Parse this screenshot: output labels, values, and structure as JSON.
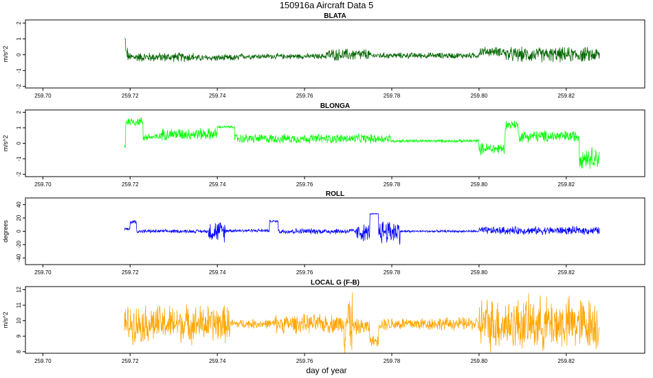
{
  "title": "150916a   Aircraft Data 5",
  "xlabel": "day of year",
  "chart_data": [
    {
      "type": "line",
      "title": "BLATA",
      "ylabel": "m/s^2",
      "color": "#006400",
      "xlim": [
        259.696,
        259.838
      ],
      "ylim": [
        -2.1,
        2.2
      ],
      "xticks": [
        259.7,
        259.72,
        259.74,
        259.76,
        259.78,
        259.8,
        259.82
      ],
      "xtick_labels": [
        "259.70",
        "259.72",
        "259.74",
        "259.76",
        "259.78",
        "259.80",
        "259.82"
      ],
      "yticks": [
        -2,
        -1,
        0,
        1,
        2
      ],
      "ytick_labels": [
        "-2",
        "-1",
        "0",
        "1",
        "2"
      ],
      "x_start": 259.7187,
      "x_end": 259.8277,
      "segments": [
        {
          "x0": 259.7187,
          "x1": 259.719,
          "base": 1.0,
          "amp": 0.1
        },
        {
          "x0": 259.719,
          "x1": 259.7195,
          "base": 0.1,
          "amp": 0.5
        },
        {
          "x0": 259.7195,
          "x1": 259.735,
          "base": -0.15,
          "amp": 0.35
        },
        {
          "x0": 259.735,
          "x1": 259.745,
          "base": -0.2,
          "amp": 0.25
        },
        {
          "x0": 259.745,
          "x1": 259.765,
          "base": -0.1,
          "amp": 0.2
        },
        {
          "x0": 259.765,
          "x1": 259.775,
          "base": 0.0,
          "amp": 0.45
        },
        {
          "x0": 259.775,
          "x1": 259.8,
          "base": -0.05,
          "amp": 0.22
        },
        {
          "x0": 259.8,
          "x1": 259.806,
          "base": 0.2,
          "amp": 0.35
        },
        {
          "x0": 259.806,
          "x1": 259.8277,
          "base": 0.0,
          "amp": 0.55
        }
      ]
    },
    {
      "type": "line",
      "title": "BLONGA",
      "ylabel": "m/s^2",
      "color": "#00ff00",
      "xlim": [
        259.696,
        259.838
      ],
      "ylim": [
        -2.15,
        2.15
      ],
      "xticks": [
        259.7,
        259.72,
        259.74,
        259.76,
        259.78,
        259.8,
        259.82
      ],
      "xtick_labels": [
        "259.70",
        "259.72",
        "259.74",
        "259.76",
        "259.78",
        "259.80",
        "259.82"
      ],
      "yticks": [
        -2,
        -1,
        0,
        1,
        2
      ],
      "ytick_labels": [
        "-2",
        "-1",
        "0",
        "1",
        "2"
      ],
      "x_start": 259.7187,
      "x_end": 259.8277,
      "segments": [
        {
          "x0": 259.7187,
          "x1": 259.719,
          "base": -0.3,
          "amp": 0.5
        },
        {
          "x0": 259.719,
          "x1": 259.723,
          "base": 1.4,
          "amp": 0.35
        },
        {
          "x0": 259.723,
          "x1": 259.727,
          "base": 0.4,
          "amp": 0.3
        },
        {
          "x0": 259.727,
          "x1": 259.74,
          "base": 0.6,
          "amp": 0.45
        },
        {
          "x0": 259.74,
          "x1": 259.744,
          "base": 1.05,
          "amp": 0.1
        },
        {
          "x0": 259.744,
          "x1": 259.78,
          "base": 0.3,
          "amp": 0.35
        },
        {
          "x0": 259.78,
          "x1": 259.8,
          "base": 0.15,
          "amp": 0.12
        },
        {
          "x0": 259.8,
          "x1": 259.806,
          "base": -0.35,
          "amp": 0.45
        },
        {
          "x0": 259.806,
          "x1": 259.809,
          "base": 1.2,
          "amp": 0.35
        },
        {
          "x0": 259.809,
          "x1": 259.823,
          "base": 0.45,
          "amp": 0.45
        },
        {
          "x0": 259.823,
          "x1": 259.8277,
          "base": -0.9,
          "amp": 0.8
        }
      ]
    },
    {
      "type": "line",
      "title": "ROLL",
      "ylabel": "degrees",
      "color": "#0000ff",
      "xlim": [
        259.696,
        259.838
      ],
      "ylim": [
        -50,
        50
      ],
      "xticks": [
        259.7,
        259.72,
        259.74,
        259.76,
        259.78,
        259.8,
        259.82
      ],
      "xtick_labels": [
        "259.70",
        "259.72",
        "259.74",
        "259.76",
        "259.78",
        "259.80",
        "259.82"
      ],
      "yticks": [
        -40,
        -20,
        0,
        20,
        40
      ],
      "ytick_labels": [
        "-40",
        "-20",
        "0",
        "20",
        "40"
      ],
      "x_start": 259.7187,
      "x_end": 259.8277,
      "segments": [
        {
          "x0": 259.7187,
          "x1": 259.72,
          "base": 3,
          "amp": 3
        },
        {
          "x0": 259.72,
          "x1": 259.7215,
          "base": 14,
          "amp": 4
        },
        {
          "x0": 259.7215,
          "x1": 259.738,
          "base": 0,
          "amp": 3
        },
        {
          "x0": 259.738,
          "x1": 259.742,
          "base": 0,
          "amp": 18
        },
        {
          "x0": 259.742,
          "x1": 259.752,
          "base": 1,
          "amp": 3
        },
        {
          "x0": 259.752,
          "x1": 259.754,
          "base": 15,
          "amp": 2
        },
        {
          "x0": 259.754,
          "x1": 259.772,
          "base": 0,
          "amp": 5
        },
        {
          "x0": 259.772,
          "x1": 259.775,
          "base": -2,
          "amp": 15
        },
        {
          "x0": 259.775,
          "x1": 259.777,
          "base": 26,
          "amp": 1
        },
        {
          "x0": 259.777,
          "x1": 259.782,
          "base": 0,
          "amp": 22
        },
        {
          "x0": 259.782,
          "x1": 259.8,
          "base": 0,
          "amp": 2
        },
        {
          "x0": 259.8,
          "x1": 259.8277,
          "base": 1,
          "amp": 7
        }
      ]
    },
    {
      "type": "line",
      "title": "LOCAL G (F-B)",
      "ylabel": "m/s^2",
      "color": "#ffa500",
      "xlim": [
        259.696,
        259.838
      ],
      "ylim": [
        7.9,
        12.2
      ],
      "xticks": [
        259.7,
        259.72,
        259.74,
        259.76,
        259.78,
        259.8,
        259.82
      ],
      "xtick_labels": [
        "259.70",
        "259.72",
        "259.74",
        "259.76",
        "259.78",
        "259.80",
        "259.82"
      ],
      "yticks": [
        8,
        9,
        10,
        11,
        12
      ],
      "ytick_labels": [
        "8",
        "9",
        "10",
        "11",
        "12"
      ],
      "x_start": 259.7187,
      "x_end": 259.8277,
      "segments": [
        {
          "x0": 259.7187,
          "x1": 259.743,
          "base": 9.8,
          "amp": 1.4
        },
        {
          "x0": 259.743,
          "x1": 259.753,
          "base": 9.8,
          "amp": 0.35
        },
        {
          "x0": 259.753,
          "x1": 259.769,
          "base": 9.8,
          "amp": 0.7
        },
        {
          "x0": 259.769,
          "x1": 259.771,
          "base": 10.0,
          "amp": 2.5
        },
        {
          "x0": 259.771,
          "x1": 259.775,
          "base": 9.6,
          "amp": 0.6
        },
        {
          "x0": 259.775,
          "x1": 259.777,
          "base": 8.7,
          "amp": 0.4
        },
        {
          "x0": 259.777,
          "x1": 259.8,
          "base": 9.8,
          "amp": 0.5
        },
        {
          "x0": 259.8,
          "x1": 259.8277,
          "base": 9.8,
          "amp": 2.0
        }
      ]
    }
  ]
}
